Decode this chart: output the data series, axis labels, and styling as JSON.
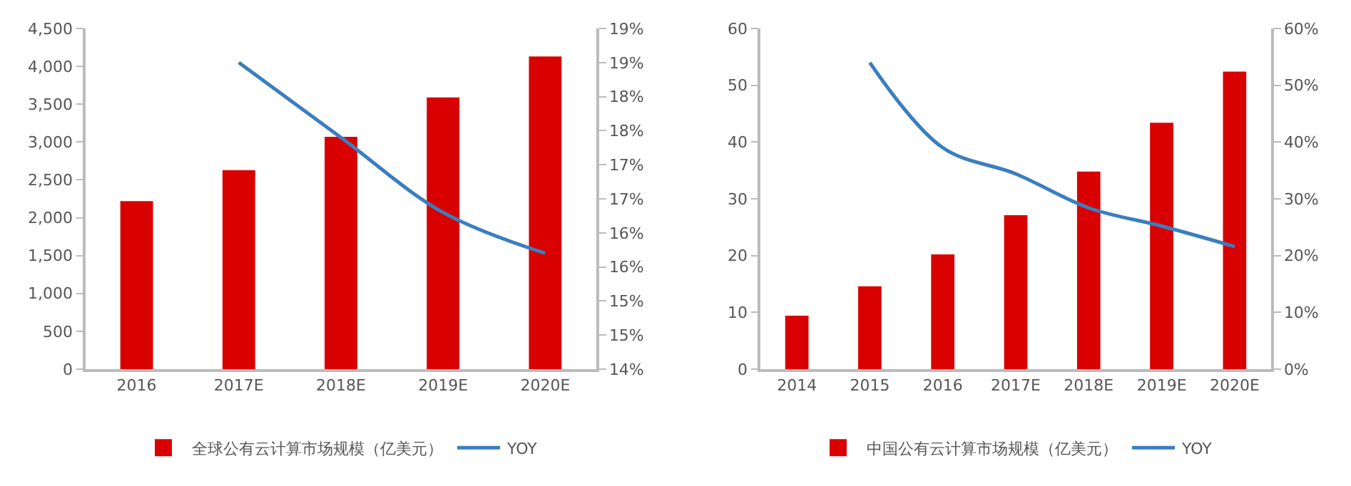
{
  "chart_data": [
    {
      "type": "bar",
      "categories": [
        "2016",
        "2017E",
        "2018E",
        "2019E",
        "2020E"
      ],
      "series": [
        {
          "name": "全球公有云计算市场规模（亿美元）",
          "color": "#d90000",
          "values": [
            2220,
            2630,
            3070,
            3590,
            4130
          ]
        },
        {
          "name": "YOY",
          "type": "line",
          "axis": "y2",
          "color": "#3a7ebf",
          "values": [
            null,
            18.5,
            17.4,
            16.3,
            15.7
          ]
        }
      ],
      "ylim": [
        0,
        4500
      ],
      "yticks": [
        0,
        {
          "value": 500,
          "label": "500"
        },
        {
          "value": 1000,
          "label": "1,000"
        },
        {
          "value": 1500,
          "label": "1,500"
        },
        {
          "value": 2000,
          "label": "2,000"
        },
        {
          "value": 2500,
          "label": "2,500"
        },
        {
          "value": 3000,
          "label": "3,000"
        },
        {
          "value": 3500,
          "label": "3,500"
        },
        {
          "value": 4000,
          "label": "4,000"
        },
        {
          "value": 4500,
          "label": "4,500"
        }
      ],
      "y2lim": [
        14,
        19
      ],
      "y2ticks": [
        {
          "value": 14,
          "label": "14%"
        },
        {
          "value": 14.5,
          "label": "15%"
        },
        {
          "value": 15,
          "label": "15%"
        },
        {
          "value": 15.5,
          "label": "16%"
        },
        {
          "value": 16,
          "label": "16%"
        },
        {
          "value": 16.5,
          "label": "17%"
        },
        {
          "value": 17,
          "label": "17%"
        },
        {
          "value": 17.5,
          "label": "18%"
        },
        {
          "value": 18,
          "label": "18%"
        },
        {
          "value": 18.5,
          "label": "19%"
        },
        {
          "value": 19,
          "label": "19%"
        }
      ],
      "legend": "bottom",
      "marker": "none"
    },
    {
      "type": "bar",
      "categories": [
        "2014",
        "2015",
        "2016",
        "2017E",
        "2018E",
        "2019E",
        "2020E"
      ],
      "series": [
        {
          "name": "中国公有云计算市场规模（亿美元）",
          "color": "#d90000",
          "values": [
            9.4,
            14.6,
            20.2,
            27.1,
            34.8,
            43.4,
            52.4
          ]
        },
        {
          "name": "YOY",
          "type": "line",
          "axis": "y2",
          "color": "#3a7ebf",
          "values": [
            null,
            54,
            39,
            34.4,
            28.4,
            25.2,
            21.6
          ]
        }
      ],
      "ylim": [
        0,
        60
      ],
      "yticks": [
        0,
        10,
        20,
        30,
        40,
        50,
        60
      ],
      "y2lim": [
        0,
        60
      ],
      "y2ticks": [
        {
          "value": 0,
          "label": "0%"
        },
        {
          "value": 10,
          "label": "10%"
        },
        {
          "value": 20,
          "label": "20%"
        },
        {
          "value": 30,
          "label": "30%"
        },
        {
          "value": 40,
          "label": "40%"
        },
        {
          "value": 50,
          "label": "50%"
        },
        {
          "value": 60,
          "label": "60%"
        }
      ],
      "legend": "bottom",
      "marker": "none"
    }
  ]
}
